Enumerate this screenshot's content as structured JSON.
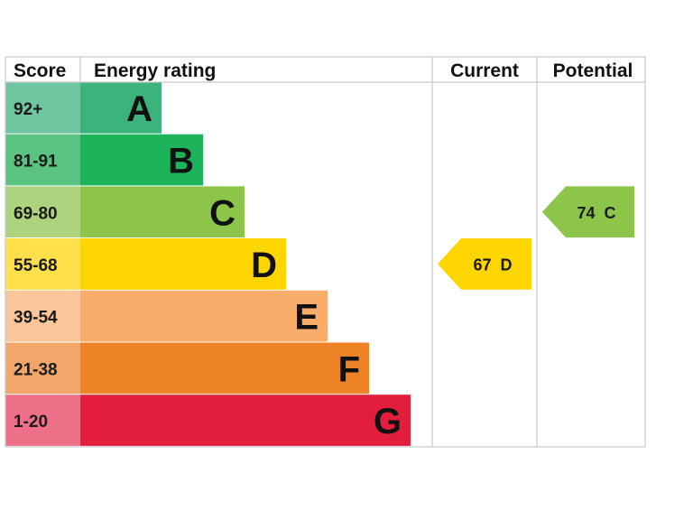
{
  "chart_data": {
    "type": "bar",
    "headers": {
      "score": "Score",
      "rating": "Energy rating",
      "current": "Current",
      "potential": "Potential"
    },
    "bands": [
      {
        "letter": "A",
        "score_range": "92+",
        "color": "#3BB37A",
        "score_color": "#6FC6A0"
      },
      {
        "letter": "B",
        "score_range": "81-91",
        "color": "#1DB35A",
        "score_color": "#5BC381"
      },
      {
        "letter": "C",
        "score_range": "69-80",
        "color": "#8DC44A",
        "score_color": "#ADD37E"
      },
      {
        "letter": "D",
        "score_range": "55-68",
        "color": "#FFD500",
        "score_color": "#FFE04A"
      },
      {
        "letter": "E",
        "score_range": "39-54",
        "color": "#F8AE6A",
        "score_color": "#FBC699"
      },
      {
        "letter": "F",
        "score_range": "21-38",
        "color": "#EE8227",
        "score_color": "#F3A66A"
      },
      {
        "letter": "G",
        "score_range": "1-20",
        "color": "#E31D3C",
        "score_color": "#EE7088"
      }
    ],
    "current": {
      "value": 67,
      "letter": "D",
      "label": "67  D",
      "color": "#FFD500"
    },
    "potential": {
      "value": 74,
      "letter": "C",
      "label": "74  C",
      "color": "#8DC44A"
    }
  }
}
